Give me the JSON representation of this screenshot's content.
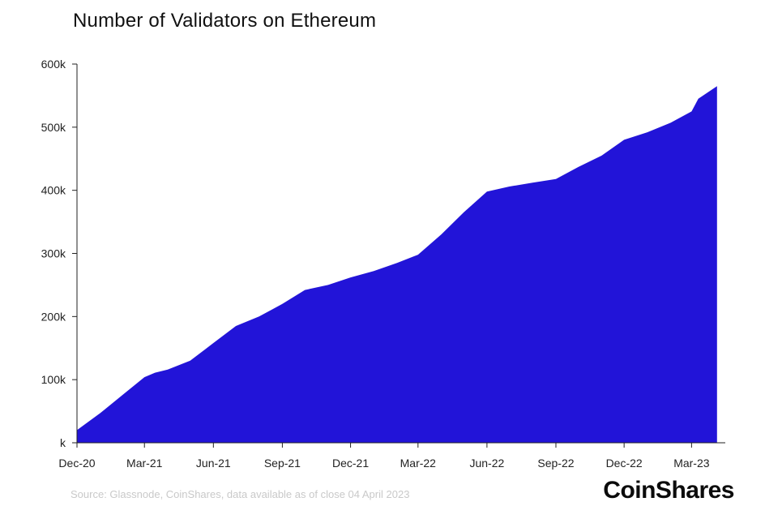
{
  "chart_data": {
    "type": "area",
    "title": "Number of Validators on Ethereum",
    "xlabel": "",
    "ylabel": "",
    "color": "#2214d8",
    "ylim": [
      0,
      600000
    ],
    "y_ticks": [
      {
        "value": 0,
        "label": "k"
      },
      {
        "value": 100000,
        "label": "100k"
      },
      {
        "value": 200000,
        "label": "200k"
      },
      {
        "value": 300000,
        "label": "300k"
      },
      {
        "value": 400000,
        "label": "400k"
      },
      {
        "value": 500000,
        "label": "500k"
      },
      {
        "value": 600000,
        "label": "600k"
      }
    ],
    "x_ticks": [
      "Dec-20",
      "Mar-21",
      "Jun-21",
      "Sep-21",
      "Dec-21",
      "Mar-22",
      "Jun-22",
      "Sep-22",
      "Dec-22",
      "Mar-23"
    ],
    "x_start": "Dec-20",
    "series": [
      {
        "x": [
          "2020-12-01",
          "2021-01-01",
          "2021-02-01",
          "2021-03-01",
          "2021-03-15",
          "2021-04-01",
          "2021-05-01",
          "2021-06-01",
          "2021-07-01",
          "2021-08-01",
          "2021-09-01",
          "2021-10-01",
          "2021-11-01",
          "2021-12-01",
          "2022-01-01",
          "2022-02-01",
          "2022-03-01",
          "2022-04-01",
          "2022-05-01",
          "2022-06-01",
          "2022-07-01",
          "2022-08-01",
          "2022-09-01",
          "2022-10-01",
          "2022-11-01",
          "2022-12-01",
          "2023-01-01",
          "2023-02-01",
          "2023-03-01",
          "2023-03-10",
          "2023-04-04"
        ],
        "y": [
          20000,
          47000,
          77000,
          104000,
          111000,
          116000,
          130000,
          158000,
          185000,
          200000,
          220000,
          242000,
          250000,
          262000,
          272000,
          285000,
          298000,
          330000,
          365000,
          398000,
          406000,
          412000,
          418000,
          437000,
          455000,
          480000,
          492000,
          507000,
          525000,
          545000,
          565000
        ]
      }
    ]
  },
  "source": "Source: Glassnode, CoinShares, data available as of close 04 April 2023",
  "logo": "CoinShares"
}
